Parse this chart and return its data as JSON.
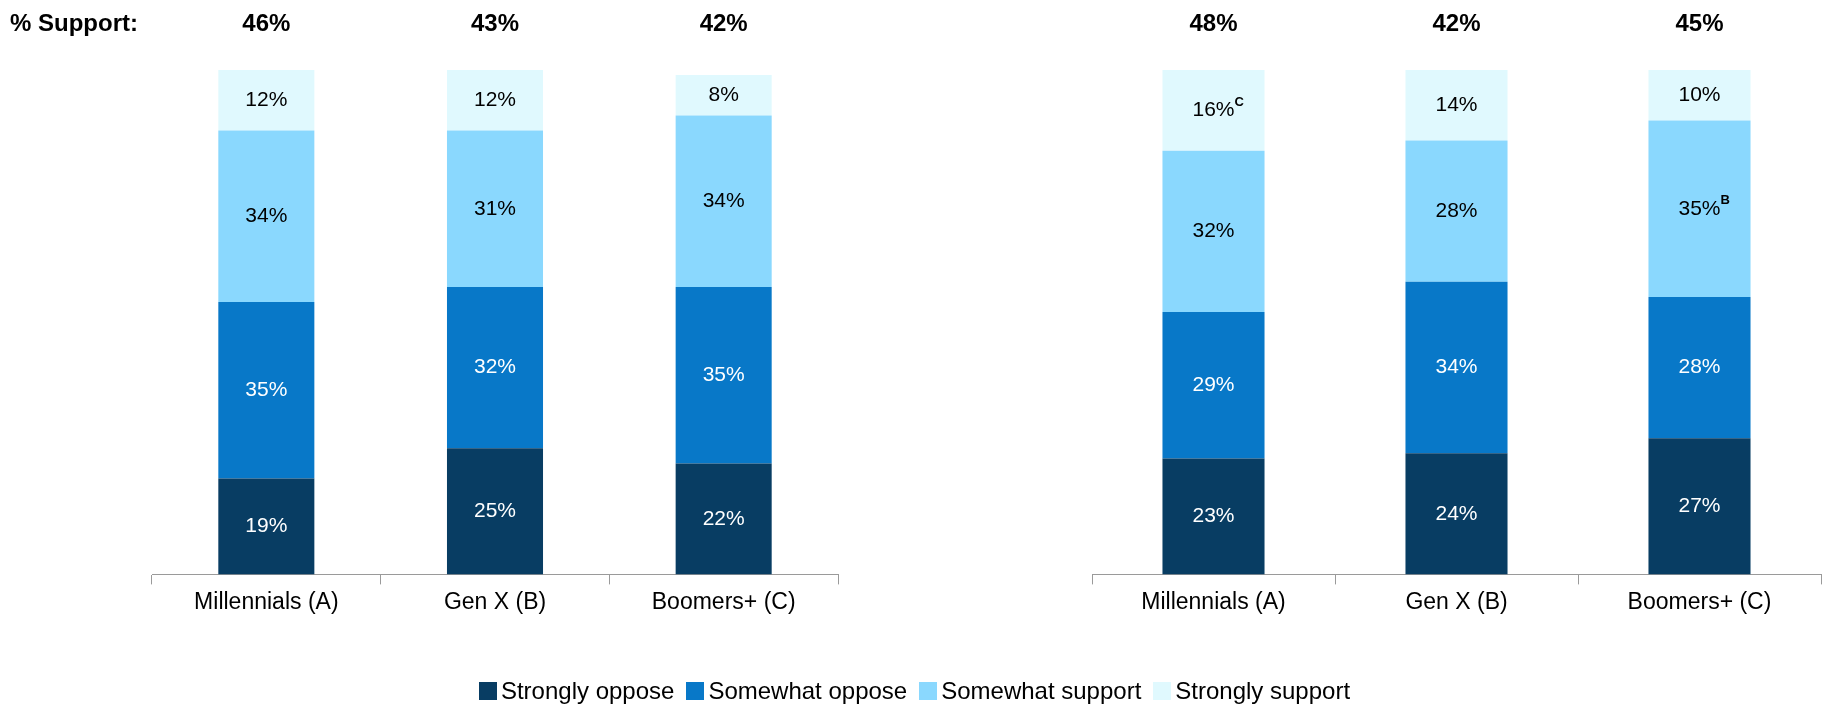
{
  "chart_data": [
    {
      "type": "bar",
      "stacked": true,
      "categories": [
        "Millennials (A)",
        "Gen X (B)",
        "Boomers+ (C)"
      ],
      "series": [
        {
          "name": "Strongly oppose",
          "color": "#083d63",
          "values": [
            19,
            25,
            22
          ],
          "value_labels": [
            "19%",
            "25%",
            "22%"
          ]
        },
        {
          "name": "Somewhat oppose",
          "color": "#0878c8",
          "values": [
            35,
            32,
            35
          ],
          "value_labels": [
            "35%",
            "32%",
            "35%"
          ]
        },
        {
          "name": "Somewhat support",
          "color": "#8ad8fe",
          "values": [
            34,
            31,
            34
          ],
          "value_labels": [
            "34%",
            "31%",
            "34%"
          ]
        },
        {
          "name": "Strongly support",
          "color": "#e0f9fe",
          "values": [
            12,
            12,
            8
          ],
          "value_labels": [
            "12%",
            "12%",
            "8%"
          ]
        }
      ],
      "annotations": [
        "% Support:",
        "46%",
        "43%",
        "42%"
      ],
      "legend": "bottom",
      "tick_labels": "x"
    },
    {
      "type": "bar",
      "stacked": true,
      "categories": [
        "Millennials (A)",
        "Gen X (B)",
        "Boomers+ (C)"
      ],
      "series": [
        {
          "color": "#083d63",
          "values": [
            23,
            24,
            27
          ],
          "value_labels": [
            "23%",
            "24%",
            "27%"
          ]
        },
        {
          "color": "#0878c8",
          "values": [
            29,
            34,
            28
          ],
          "value_labels": [
            "29%",
            "34%",
            "28%"
          ]
        },
        {
          "color": "#8ad8fe",
          "values": [
            32,
            28,
            35
          ],
          "value_labels": [
            "32%",
            "28%",
            "35%$^{B}$"
          ]
        },
        {
          "color": "#e0f9fe",
          "values": [
            16,
            14,
            10
          ],
          "value_labels": [
            "16%$^{C}$",
            "14%",
            "10%"
          ]
        }
      ],
      "annotations": [
        "48%",
        "42%",
        "45%"
      ],
      "tick_labels": "x"
    }
  ]
}
